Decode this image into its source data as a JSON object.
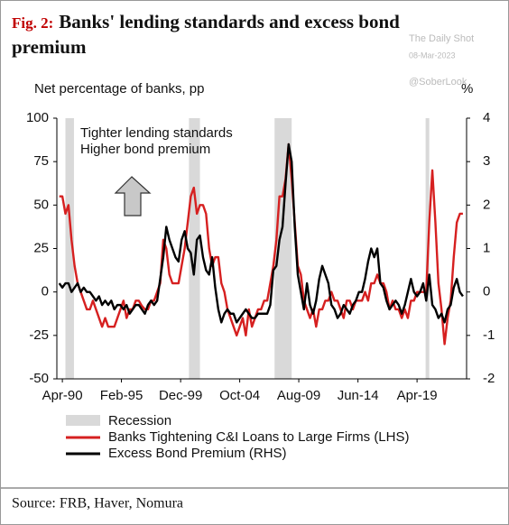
{
  "chart_data": {
    "type": "line",
    "title_prefix": "Fig. 2:",
    "title": "Banks' lending standards and excess bond premium",
    "watermark": [
      "The Daily Shot",
      "08-Mar-2023",
      "@SoberLook"
    ],
    "ylabel": "Net percentage of banks, pp",
    "y2label": "%",
    "annotations": [
      "Tighter lending standards",
      "Higher bond premium"
    ],
    "source": "Source: FRB, Haver, Nomura",
    "recession_label": "Recession",
    "recession_color": "#d9d9d9",
    "recessions": [
      [
        1990.5,
        1991.2
      ],
      [
        2000.6,
        2001.5
      ],
      [
        2007.6,
        2009.0
      ],
      [
        2019.95,
        2020.25
      ]
    ],
    "xlim": [
      1989.8,
      2023.3
    ],
    "xticks": [
      {
        "value": 1990.25,
        "label": "Apr-90"
      },
      {
        "value": 1995.08,
        "label": "Feb-95"
      },
      {
        "value": 1999.92,
        "label": "Dec-99"
      },
      {
        "value": 2004.75,
        "label": "Oct-04"
      },
      {
        "value": 2009.58,
        "label": "Aug-09"
      },
      {
        "value": 2014.42,
        "label": "Jun-14"
      },
      {
        "value": 2019.25,
        "label": "Apr-19"
      }
    ],
    "ylim": [
      -50,
      100
    ],
    "yticks": [
      -50,
      -25,
      0,
      25,
      50,
      75,
      100
    ],
    "y2lim": [
      -2,
      4
    ],
    "y2ticks": [
      -2,
      -1,
      0,
      1,
      2,
      3,
      4
    ],
    "x": [
      1990,
      1990.25,
      1990.5,
      1990.75,
      1991,
      1991.25,
      1991.5,
      1991.75,
      1992,
      1992.25,
      1992.5,
      1992.75,
      1993,
      1993.25,
      1993.5,
      1993.75,
      1994,
      1994.25,
      1994.5,
      1994.75,
      1995,
      1995.25,
      1995.5,
      1995.75,
      1996,
      1996.25,
      1996.5,
      1996.75,
      1997,
      1997.25,
      1997.5,
      1997.75,
      1998,
      1998.25,
      1998.5,
      1998.75,
      1999,
      1999.25,
      1999.5,
      1999.75,
      2000,
      2000.25,
      2000.5,
      2000.75,
      2001,
      2001.25,
      2001.5,
      2001.75,
      2002,
      2002.25,
      2002.5,
      2002.75,
      2003,
      2003.25,
      2003.5,
      2003.75,
      2004,
      2004.25,
      2004.5,
      2004.75,
      2005,
      2005.25,
      2005.5,
      2005.75,
      2006,
      2006.25,
      2006.5,
      2006.75,
      2007,
      2007.25,
      2007.5,
      2007.75,
      2008,
      2008.25,
      2008.5,
      2008.75,
      2009,
      2009.25,
      2009.5,
      2009.75,
      2010,
      2010.25,
      2010.5,
      2010.75,
      2011,
      2011.25,
      2011.5,
      2011.75,
      2012,
      2012.25,
      2012.5,
      2012.75,
      2013,
      2013.25,
      2013.5,
      2013.75,
      2014,
      2014.25,
      2014.5,
      2014.75,
      2015,
      2015.25,
      2015.5,
      2015.75,
      2016,
      2016.25,
      2016.5,
      2016.75,
      2017,
      2017.25,
      2017.5,
      2017.75,
      2018,
      2018.25,
      2018.5,
      2018.75,
      2019,
      2019.25,
      2019.5,
      2019.75,
      2020,
      2020.25,
      2020.5,
      2020.75,
      2021,
      2021.25,
      2021.5,
      2021.75,
      2022,
      2022.25,
      2022.5,
      2022.75,
      2023
    ],
    "series": [
      {
        "name": "Banks Tightening C&I Loans to Large Firms (LHS)",
        "color": "#d62020",
        "values": [
          55,
          55,
          45,
          50,
          30,
          15,
          5,
          0,
          -5,
          -10,
          -10,
          -5,
          -10,
          -15,
          -20,
          -15,
          -20,
          -20,
          -20,
          -15,
          -10,
          -5,
          -15,
          -10,
          -10,
          -5,
          -5,
          -8,
          -10,
          -10,
          -5,
          -5,
          0,
          5,
          30,
          25,
          10,
          5,
          5,
          5,
          15,
          25,
          40,
          55,
          60,
          45,
          50,
          50,
          45,
          25,
          15,
          20,
          20,
          5,
          0,
          -10,
          -15,
          -20,
          -25,
          -20,
          -15,
          -25,
          -10,
          -20,
          -15,
          -10,
          -10,
          -5,
          -5,
          5,
          15,
          30,
          55,
          55,
          65,
          85,
          65,
          40,
          15,
          10,
          -5,
          -10,
          -15,
          -10,
          -20,
          -10,
          -10,
          -5,
          -5,
          0,
          -5,
          -5,
          -10,
          -15,
          -5,
          -5,
          -10,
          -5,
          -5,
          -5,
          0,
          -5,
          5,
          5,
          10,
          5,
          5,
          0,
          -10,
          -5,
          -10,
          -10,
          -15,
          -10,
          -15,
          -5,
          -5,
          0,
          0,
          0,
          0,
          40,
          70,
          40,
          5,
          -10,
          -30,
          -15,
          -5,
          20,
          40,
          45,
          45
        ]
      },
      {
        "name": "Excess Bond Premium (RHS)",
        "color": "#000000",
        "axis": "y2",
        "values": [
          0.2,
          0.1,
          0.2,
          0.2,
          0.0,
          0.1,
          0.2,
          0.0,
          0.1,
          0.0,
          0.0,
          -0.1,
          -0.2,
          -0.1,
          -0.3,
          -0.2,
          -0.3,
          -0.2,
          -0.4,
          -0.3,
          -0.3,
          -0.4,
          -0.3,
          -0.5,
          -0.4,
          -0.3,
          -0.3,
          -0.4,
          -0.5,
          -0.3,
          -0.2,
          -0.3,
          -0.2,
          0.3,
          0.8,
          1.5,
          1.2,
          1.0,
          0.8,
          0.7,
          1.2,
          1.4,
          1.0,
          0.9,
          0.4,
          1.2,
          1.3,
          0.8,
          0.5,
          0.4,
          0.8,
          0.1,
          -0.4,
          -0.7,
          -0.5,
          -0.4,
          -0.5,
          -0.5,
          -0.7,
          -0.6,
          -0.5,
          -0.4,
          -0.5,
          -0.6,
          -0.6,
          -0.5,
          -0.5,
          -0.5,
          -0.5,
          -0.3,
          0.5,
          0.6,
          1.2,
          1.5,
          2.5,
          3.4,
          3.0,
          1.5,
          0.4,
          0.0,
          -0.4,
          0.2,
          -0.3,
          -0.5,
          -0.2,
          0.3,
          0.6,
          0.4,
          0.2,
          -0.3,
          -0.4,
          -0.6,
          -0.5,
          -0.3,
          -0.4,
          -0.5,
          -0.3,
          -0.2,
          0.0,
          0.0,
          0.3,
          0.7,
          1.0,
          0.8,
          1.0,
          0.2,
          0.1,
          -0.2,
          -0.4,
          -0.3,
          -0.2,
          -0.3,
          -0.5,
          -0.3,
          0.0,
          0.3,
          0.0,
          -0.1,
          0.0,
          0.2,
          -0.2,
          0.4,
          -0.3,
          -0.4,
          -0.6,
          -0.5,
          -0.7,
          -0.4,
          -0.3,
          0.1,
          0.3,
          0.0,
          -0.1
        ]
      }
    ]
  }
}
